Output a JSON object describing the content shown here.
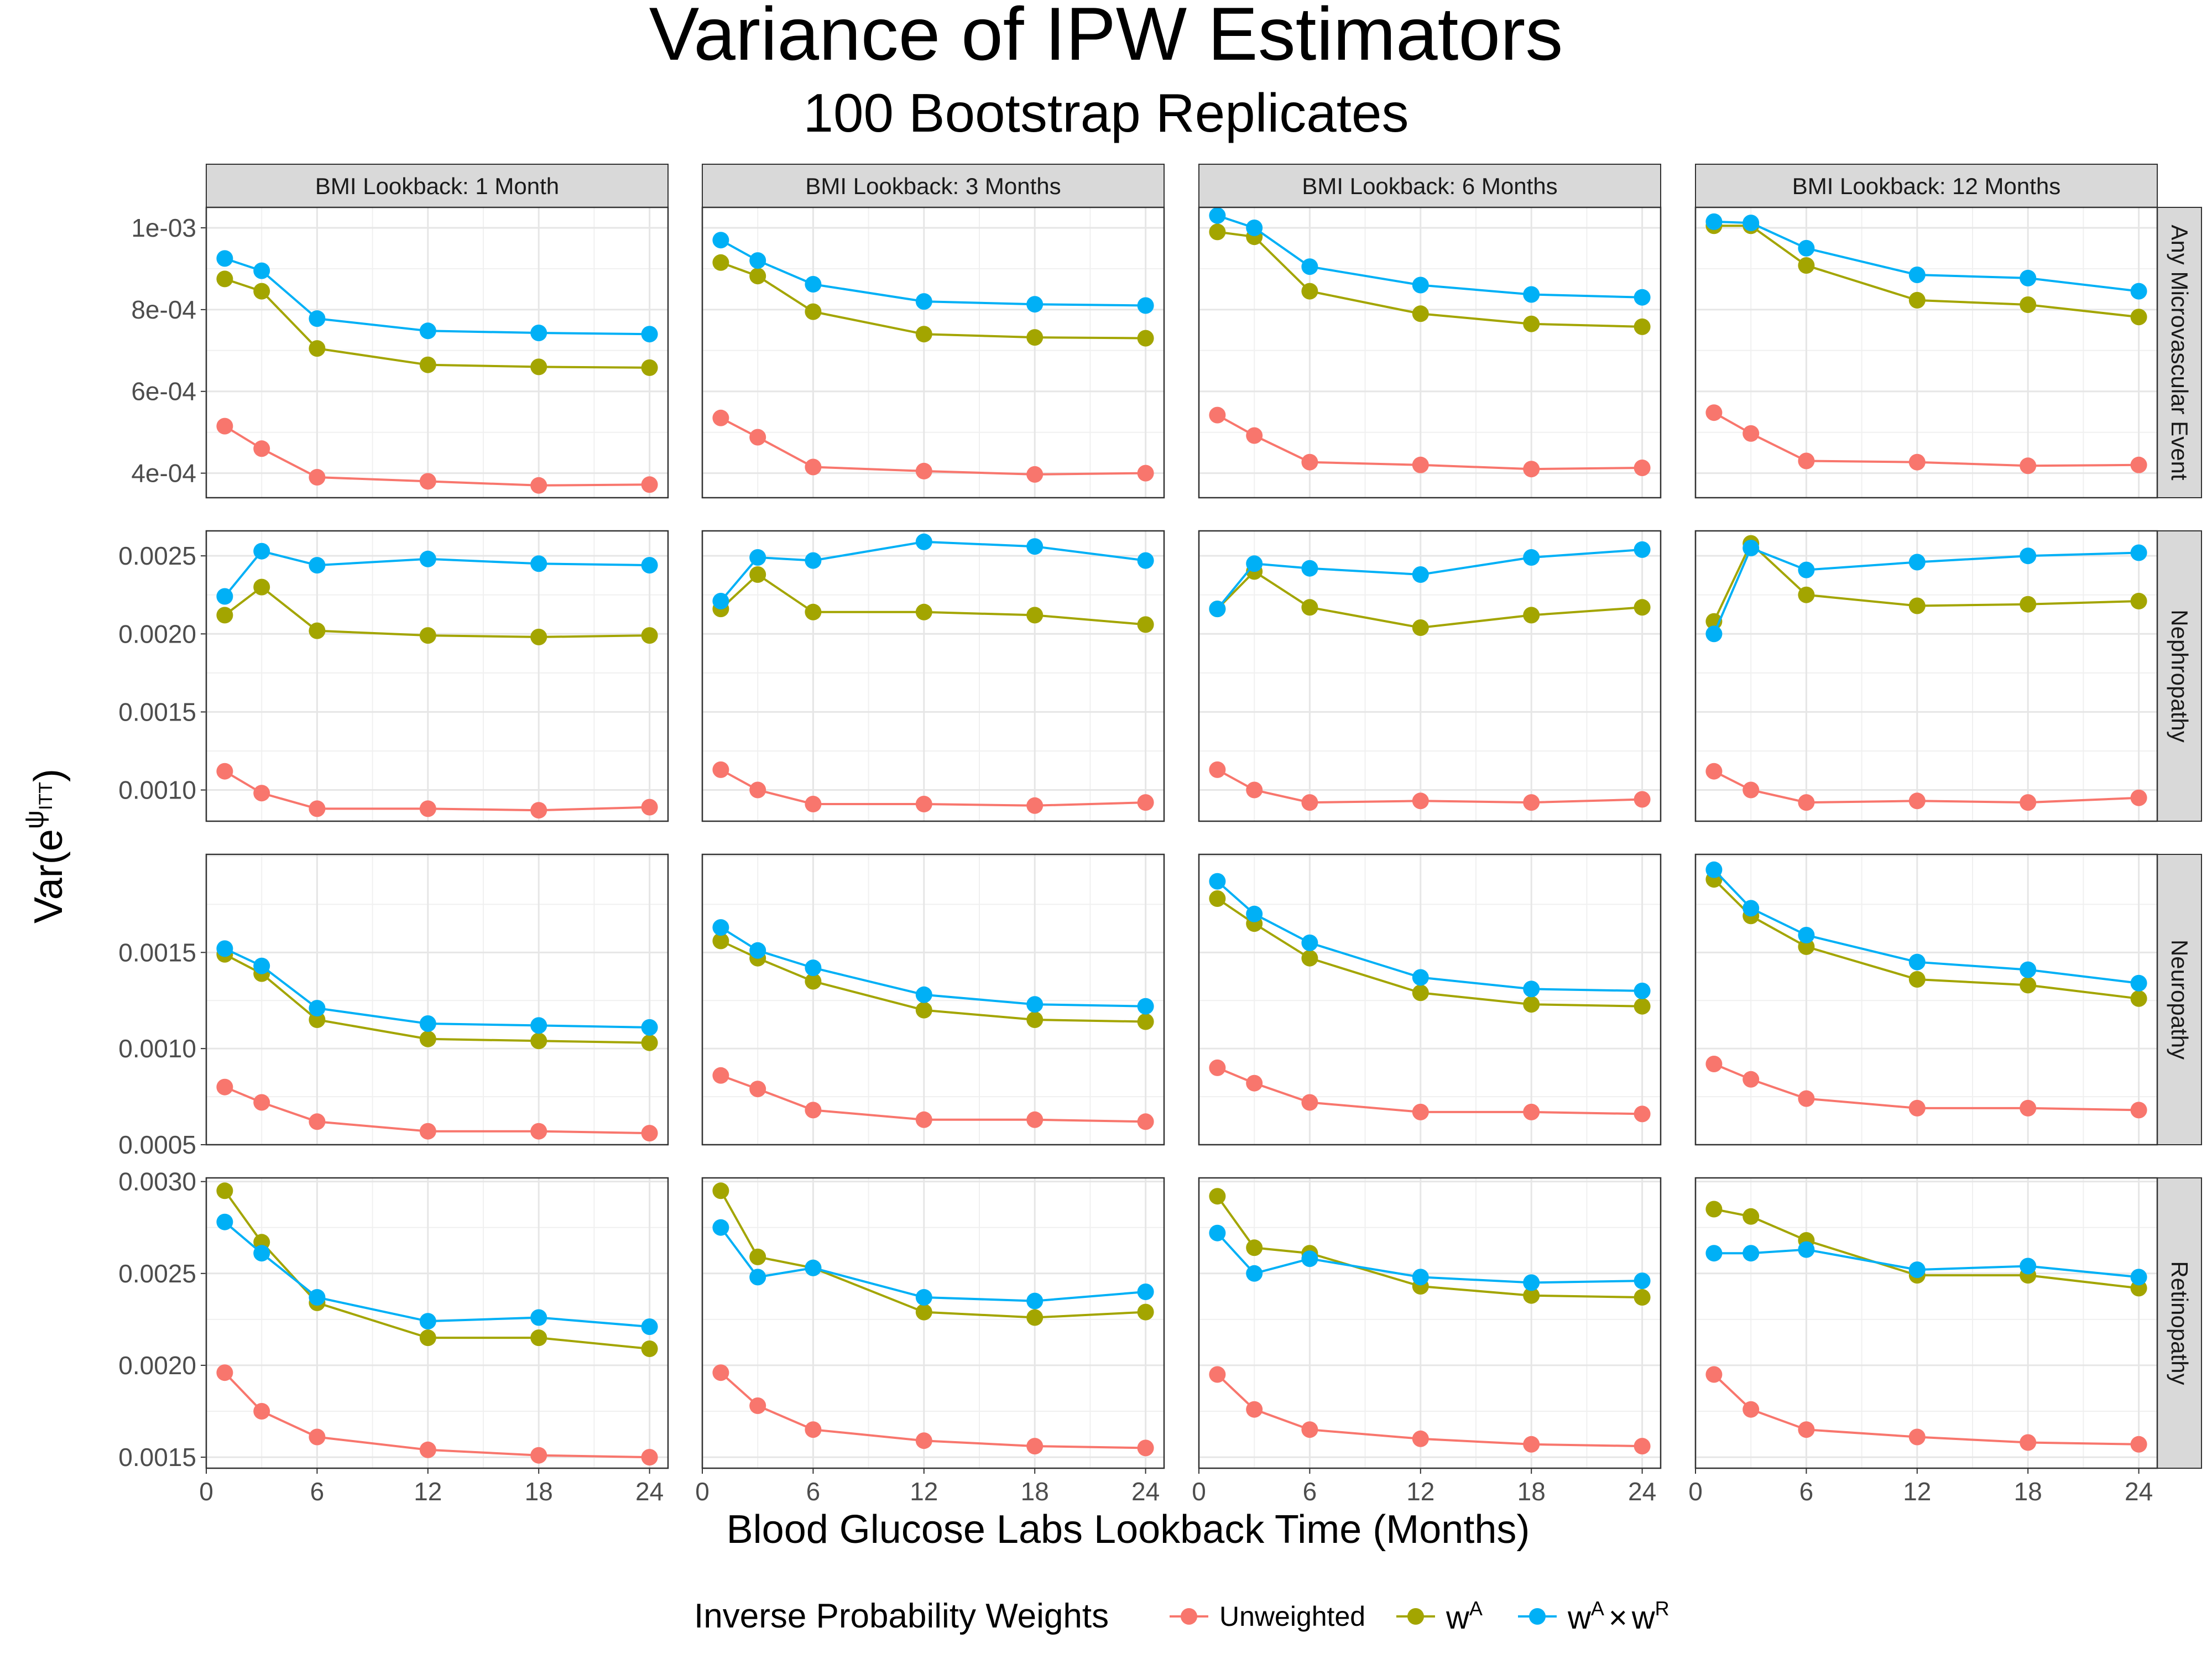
{
  "title": "Variance of IPW Estimators",
  "subtitle": "100 Bootstrap Replicates",
  "x_axis_title": "Blood Glucose Labs Lookback Time (Months)",
  "y_axis_title": {
    "base": "Var(e",
    "sup": "ψ",
    "sub": "ITT",
    "close": ")"
  },
  "legend": {
    "title": "Inverse Probability Weights",
    "items": [
      {
        "label": "Unweighted",
        "color": "#F8766D"
      },
      {
        "label": "w",
        "sup": "A",
        "color": "#A3A500"
      },
      {
        "label": "w",
        "sup": "A",
        "times": "×",
        "label2": "w",
        "sup2": "R",
        "color": "#00B0F6"
      }
    ]
  },
  "colors": {
    "Unweighted": "#F8766D",
    "wA": "#A3A500",
    "wAwR": "#00B0F6"
  },
  "chart_data": {
    "type": "line",
    "x": [
      1,
      3,
      6,
      12,
      18,
      24
    ],
    "x_ticks": [
      0,
      6,
      12,
      18,
      24
    ],
    "x_tick_labels": [
      "0",
      "6",
      "12",
      "18",
      "24"
    ],
    "xlim": [
      0,
      25
    ],
    "grid": true,
    "legend_position": "bottom",
    "columns": [
      "BMI Lookback: 1 Month",
      "BMI Lookback: 3 Months",
      "BMI Lookback: 6 Months",
      "BMI Lookback: 12 Months"
    ],
    "rows": [
      {
        "label": "Any Microvascular Event",
        "ylim": [
          0.00034,
          0.00105
        ],
        "y_ticks": [
          0.0004,
          0.0006,
          0.0008,
          0.001
        ],
        "y_tick_labels": [
          "4e-04",
          "6e-04",
          "8e-04",
          "1e-03"
        ],
        "panels": [
          {
            "Unweighted": [
              0.000515,
              0.00046,
              0.00039,
              0.00038,
              0.00037,
              0.000372
            ],
            "wA": [
              0.000875,
              0.000845,
              0.000705,
              0.000665,
              0.00066,
              0.000658
            ],
            "wAwR": [
              0.000925,
              0.000895,
              0.000778,
              0.000748,
              0.000743,
              0.00074
            ]
          },
          {
            "Unweighted": [
              0.000535,
              0.000488,
              0.000415,
              0.000405,
              0.000397,
              0.0004
            ],
            "wA": [
              0.000915,
              0.000882,
              0.000795,
              0.00074,
              0.000732,
              0.00073
            ],
            "wAwR": [
              0.00097,
              0.00092,
              0.000862,
              0.00082,
              0.000813,
              0.00081
            ]
          },
          {
            "Unweighted": [
              0.000542,
              0.000492,
              0.000427,
              0.00042,
              0.00041,
              0.000413
            ],
            "wA": [
              0.00099,
              0.000978,
              0.000845,
              0.00079,
              0.000765,
              0.000758
            ],
            "wAwR": [
              0.00103,
              0.001,
              0.000905,
              0.00086,
              0.000837,
              0.00083
            ]
          },
          {
            "Unweighted": [
              0.000548,
              0.000497,
              0.00043,
              0.000427,
              0.000418,
              0.00042
            ],
            "wA": [
              0.001005,
              0.001005,
              0.000908,
              0.000823,
              0.000812,
              0.000782
            ],
            "wAwR": [
              0.001015,
              0.001012,
              0.00095,
              0.000885,
              0.000877,
              0.000845
            ]
          }
        ]
      },
      {
        "label": "Nephropathy",
        "ylim": [
          0.0008,
          0.00266
        ],
        "y_ticks": [
          0.001,
          0.0015,
          0.002,
          0.0025
        ],
        "y_tick_labels": [
          "0.0010",
          "0.0015",
          "0.0020",
          "0.0025"
        ],
        "panels": [
          {
            "Unweighted": [
              0.00112,
              0.00098,
              0.00088,
              0.00088,
              0.00087,
              0.00089
            ],
            "wA": [
              0.00212,
              0.0023,
              0.00202,
              0.00199,
              0.00198,
              0.00199
            ],
            "wAwR": [
              0.00224,
              0.00253,
              0.00244,
              0.00248,
              0.00245,
              0.00244
            ]
          },
          {
            "Unweighted": [
              0.00113,
              0.001,
              0.00091,
              0.00091,
              0.0009,
              0.00092
            ],
            "wA": [
              0.00216,
              0.00238,
              0.00214,
              0.00214,
              0.00212,
              0.00206
            ],
            "wAwR": [
              0.00221,
              0.00249,
              0.00247,
              0.00259,
              0.00256,
              0.00247
            ]
          },
          {
            "Unweighted": [
              0.00113,
              0.001,
              0.00092,
              0.00093,
              0.00092,
              0.00094
            ],
            "wA": [
              0.00216,
              0.0024,
              0.00217,
              0.00204,
              0.00212,
              0.00217
            ],
            "wAwR": [
              0.00216,
              0.00245,
              0.00242,
              0.00238,
              0.00249,
              0.00254
            ]
          },
          {
            "Unweighted": [
              0.00112,
              0.001,
              0.00092,
              0.00093,
              0.00092,
              0.00095
            ],
            "wA": [
              0.00208,
              0.00258,
              0.00225,
              0.00218,
              0.00219,
              0.00221
            ],
            "wAwR": [
              0.002,
              0.00255,
              0.00241,
              0.00246,
              0.0025,
              0.00252
            ]
          }
        ]
      },
      {
        "label": "Neuropathy",
        "ylim": [
          0.0005,
          0.00201
        ],
        "y_ticks": [
          0.0005,
          0.001,
          0.0015
        ],
        "y_tick_labels": [
          "0.0005",
          "0.0010",
          "0.0015"
        ],
        "panels": [
          {
            "Unweighted": [
              0.0008,
              0.00072,
              0.00062,
              0.00057,
              0.00057,
              0.00056
            ],
            "wA": [
              0.00149,
              0.00139,
              0.00115,
              0.00105,
              0.00104,
              0.00103
            ],
            "wAwR": [
              0.00152,
              0.00143,
              0.00121,
              0.00113,
              0.00112,
              0.00111
            ]
          },
          {
            "Unweighted": [
              0.00086,
              0.00079,
              0.00068,
              0.00063,
              0.00063,
              0.00062
            ],
            "wA": [
              0.00156,
              0.00147,
              0.00135,
              0.0012,
              0.00115,
              0.00114
            ],
            "wAwR": [
              0.00163,
              0.00151,
              0.00142,
              0.00128,
              0.00123,
              0.00122
            ]
          },
          {
            "Unweighted": [
              0.0009,
              0.00082,
              0.00072,
              0.00067,
              0.00067,
              0.00066
            ],
            "wA": [
              0.00178,
              0.00165,
              0.00147,
              0.00129,
              0.00123,
              0.00122
            ],
            "wAwR": [
              0.00187,
              0.0017,
              0.00155,
              0.00137,
              0.00131,
              0.0013
            ]
          },
          {
            "Unweighted": [
              0.00092,
              0.00084,
              0.00074,
              0.00069,
              0.00069,
              0.00068
            ],
            "wA": [
              0.00188,
              0.00169,
              0.00153,
              0.00136,
              0.00133,
              0.00126
            ],
            "wAwR": [
              0.00193,
              0.00173,
              0.00159,
              0.00145,
              0.00141,
              0.00134
            ]
          }
        ]
      },
      {
        "label": "Retinopathy",
        "ylim": [
          0.00144,
          0.00302
        ],
        "y_ticks": [
          0.0015,
          0.002,
          0.0025,
          0.003
        ],
        "y_tick_labels": [
          "0.0015",
          "0.0020",
          "0.0025",
          "0.0030"
        ],
        "panels": [
          {
            "Unweighted": [
              0.00196,
              0.00175,
              0.00161,
              0.00154,
              0.00151,
              0.0015
            ],
            "wA": [
              0.00295,
              0.00267,
              0.00234,
              0.00215,
              0.00215,
              0.00209
            ],
            "wAwR": [
              0.00278,
              0.00261,
              0.00237,
              0.00224,
              0.00226,
              0.00221
            ]
          },
          {
            "Unweighted": [
              0.00196,
              0.00178,
              0.00165,
              0.00159,
              0.00156,
              0.00155
            ],
            "wA": [
              0.00295,
              0.00259,
              0.00253,
              0.00229,
              0.00226,
              0.00229
            ],
            "wAwR": [
              0.00275,
              0.00248,
              0.00253,
              0.00237,
              0.00235,
              0.0024
            ]
          },
          {
            "Unweighted": [
              0.00195,
              0.00176,
              0.00165,
              0.0016,
              0.00157,
              0.00156
            ],
            "wA": [
              0.00292,
              0.00264,
              0.00261,
              0.00243,
              0.00238,
              0.00237
            ],
            "wAwR": [
              0.00272,
              0.0025,
              0.00258,
              0.00248,
              0.00245,
              0.00246
            ]
          },
          {
            "Unweighted": [
              0.00195,
              0.00176,
              0.00165,
              0.00161,
              0.00158,
              0.00157
            ],
            "wA": [
              0.00285,
              0.00281,
              0.00268,
              0.00249,
              0.00249,
              0.00242
            ],
            "wAwR": [
              0.00261,
              0.00261,
              0.00263,
              0.00252,
              0.00254,
              0.00248
            ]
          }
        ]
      }
    ]
  }
}
